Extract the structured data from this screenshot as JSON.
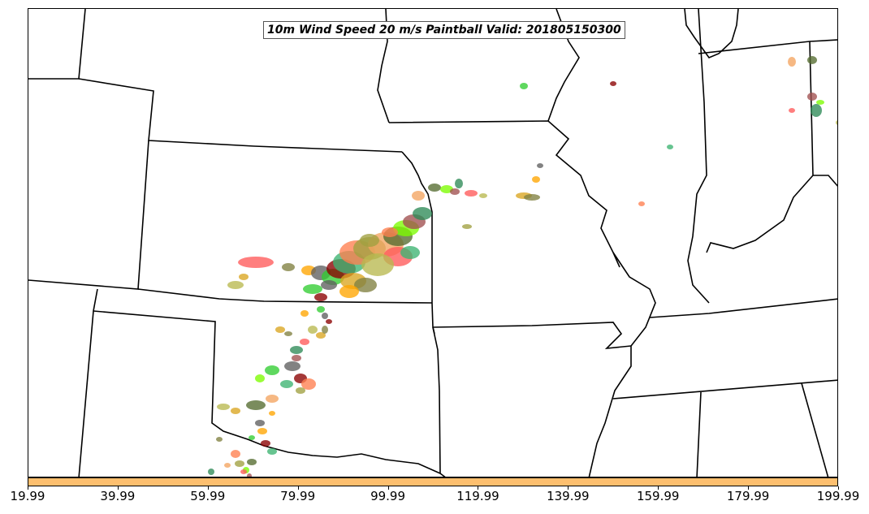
{
  "title": "10m Wind Speed 20 m/s Paintball Valid: 201805150300",
  "colorbar": {
    "color": "#fdbf6f",
    "ticks": [
      "19.99",
      "39.99",
      "59.99",
      "79.99",
      "99.99",
      "119.99",
      "139.99",
      "159.99",
      "179.99",
      "199.99"
    ]
  },
  "member_colors": [
    "#ff5a5a",
    "#8b0000",
    "#a05050",
    "#5f5f5f",
    "#556b2f",
    "#808040",
    "#a0a040",
    "#b8b850",
    "#3cb371",
    "#2e8b57",
    "#32cd32",
    "#7cfc00",
    "#ffa500",
    "#f4a460",
    "#daa520",
    "#ff7f50"
  ]
}
